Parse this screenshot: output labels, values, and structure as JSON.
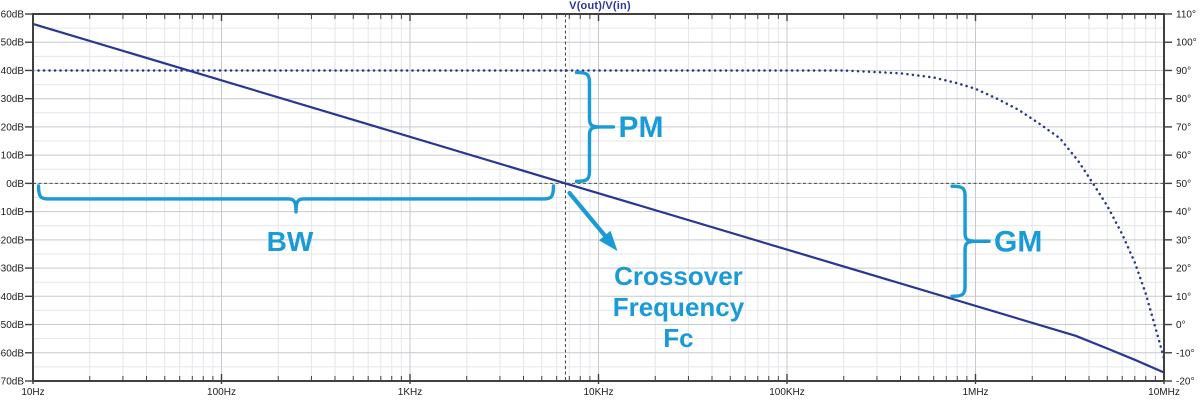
{
  "chart_data": {
    "type": "line",
    "title": "V(out)/V(in)",
    "title_color": "#2b37a0",
    "x_axis": {
      "scale": "log",
      "unit": "Hz",
      "min_hz": 10,
      "max_hz": 10000000,
      "major_ticks": [
        {
          "hz": 10,
          "label": "10Hz"
        },
        {
          "hz": 100,
          "label": "100Hz"
        },
        {
          "hz": 1000,
          "label": "1KHz"
        },
        {
          "hz": 10000,
          "label": "10KHz"
        },
        {
          "hz": 100000,
          "label": "100KHz"
        },
        {
          "hz": 1000000,
          "label": "1MHz"
        },
        {
          "hz": 10000000,
          "label": "10MHz"
        }
      ]
    },
    "y_axis_left": {
      "unit": "dB",
      "min": -70,
      "max": 60,
      "step": 10,
      "labels": [
        "60dB",
        "50dB",
        "40dB",
        "30dB",
        "20dB",
        "10dB",
        "0dB",
        "-10dB",
        "-20dB",
        "-30dB",
        "-40dB",
        "-50dB",
        "-60dB",
        "-70dB"
      ]
    },
    "y_axis_right": {
      "unit": "deg",
      "min": -20,
      "max": 110,
      "step": 10,
      "labels": [
        "110°",
        "100°",
        "90°",
        "80°",
        "70°",
        "60°",
        "50°",
        "40°",
        "30°",
        "20°",
        "10°",
        "0°",
        "-10°",
        "-20°"
      ]
    },
    "series": [
      {
        "name": "gain-magnitude",
        "style": "solid",
        "unit": "dB",
        "color": "#2a3792",
        "points": [
          [
            10,
            56.5
          ],
          [
            6680,
            0
          ],
          [
            3400000,
            -54
          ],
          [
            5000000,
            -58.5
          ],
          [
            7000000,
            -62.5
          ],
          [
            10000000,
            -67
          ]
        ]
      },
      {
        "name": "phase",
        "style": "dotted",
        "unit": "deg",
        "color": "#2a3792",
        "points": [
          [
            10,
            90
          ],
          [
            200000,
            90
          ],
          [
            400000,
            89
          ],
          [
            600000,
            87.5
          ],
          [
            800000,
            85.5
          ],
          [
            1000000,
            83.5
          ],
          [
            1300000,
            80
          ],
          [
            1700000,
            76
          ],
          [
            2200000,
            71
          ],
          [
            2800000,
            66
          ],
          [
            3500000,
            58
          ],
          [
            4200000,
            50
          ],
          [
            5000000,
            42
          ],
          [
            6000000,
            32
          ],
          [
            7000000,
            22
          ],
          [
            8000000,
            11
          ],
          [
            9000000,
            -1
          ],
          [
            10000000,
            -12
          ]
        ]
      }
    ],
    "crosshair": {
      "x_hz": 6680,
      "y_db": 0
    },
    "annotations": {
      "color": "#1a9bd7",
      "pm_label": "PM",
      "bw_label": "BW",
      "gm_label": "GM",
      "crossover_label_lines": [
        "Crossover",
        "Frequency",
        "Fc"
      ],
      "gm_brace_hz": 880000,
      "gm_brace_db_top": -1,
      "gm_brace_db_bottom": -40,
      "bw_start_hz": 10.7,
      "bw_level_db": -5.5
    },
    "grid": {
      "major_color": "#c6c9ce",
      "minor_color": "#e4e6ea",
      "border_color": "#404040",
      "dashed_ref_color": "#4f4f4f",
      "tick_label_color": "#1c1c1c"
    },
    "layout_hints": {
      "legend": "none",
      "grid": "on",
      "x_decades": 6,
      "db_per_div": 10,
      "deg_per_div": 10
    }
  }
}
